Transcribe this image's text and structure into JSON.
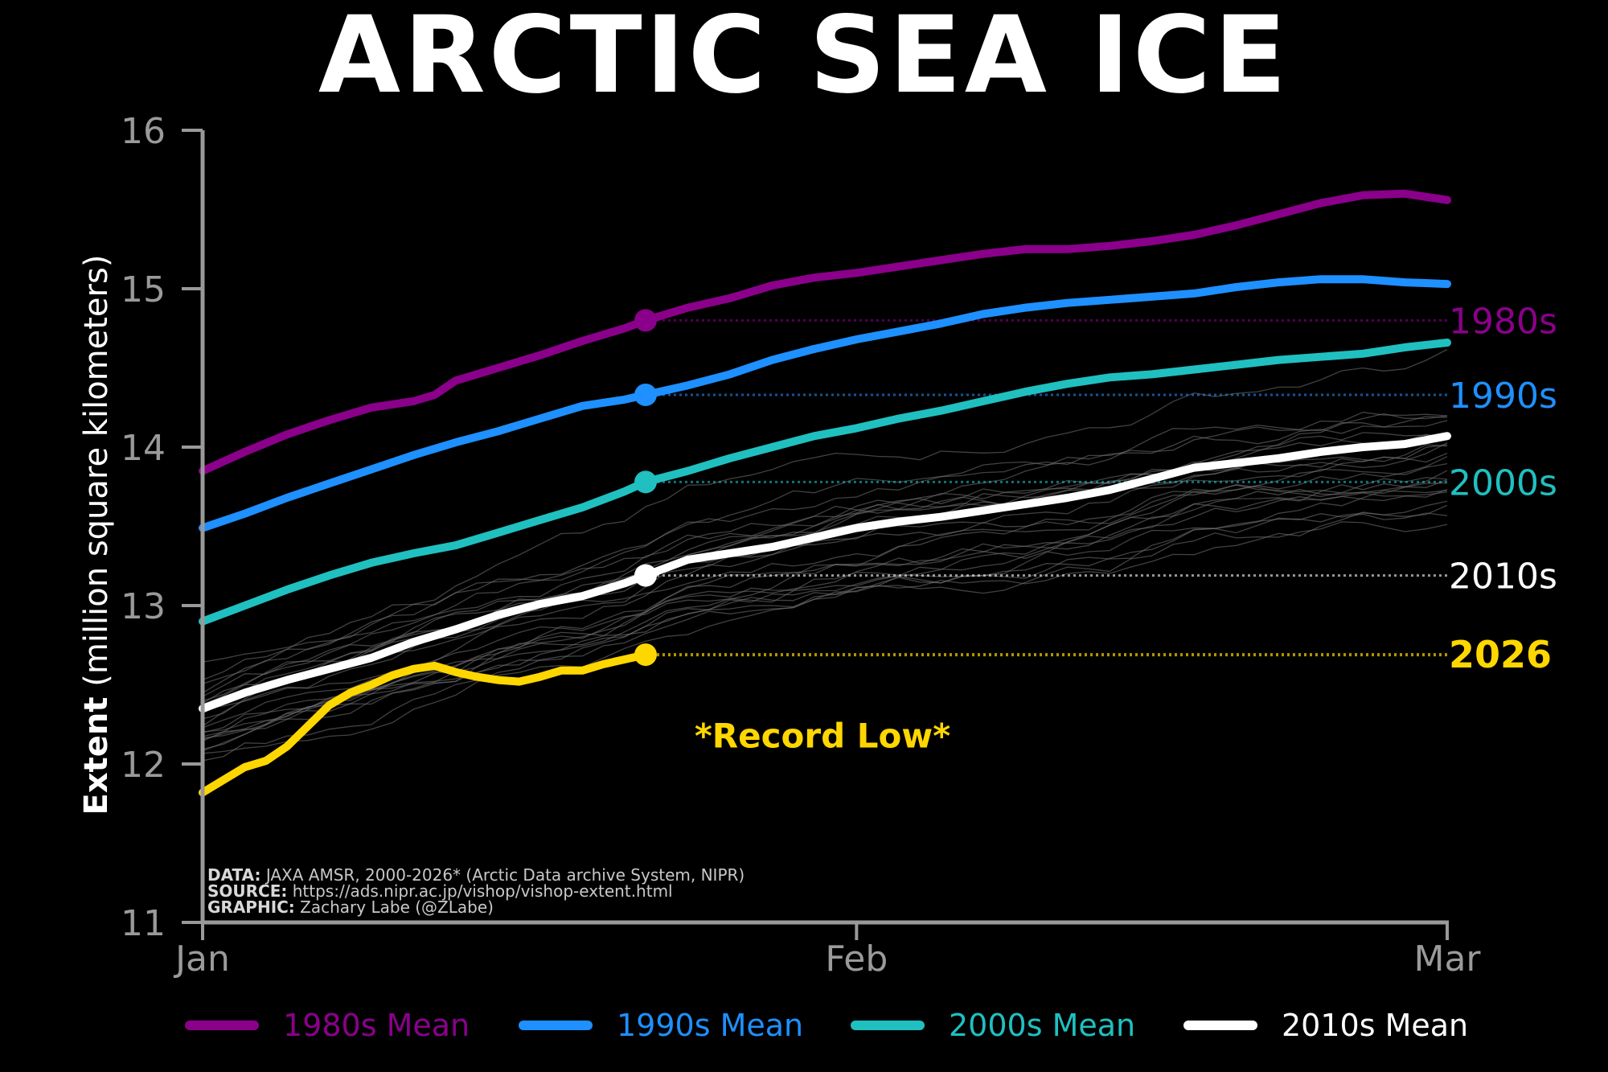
{
  "chart_data": {
    "type": "line",
    "title": "ARCTIC SEA ICE",
    "ylabel_bold": "Extent",
    "ylabel_rest": "(million square kilometers)",
    "ylim": [
      11,
      16
    ],
    "yticks": [
      "11",
      "12",
      "13",
      "14",
      "15",
      "16"
    ],
    "xlim": [
      0,
      59
    ],
    "xticks": [
      {
        "label": "Jan",
        "x": 0
      },
      {
        "label": "Feb",
        "x": 31
      },
      {
        "label": "Mar",
        "x": 59
      }
    ],
    "grid": false,
    "legend_position": "bottom",
    "series": [
      {
        "name": "1980s Mean",
        "end_label": "1980s",
        "color": "#8b008b",
        "marker_x": 21,
        "marker_y": 14.8,
        "x": [
          0,
          2,
          4,
          6,
          8,
          10,
          11,
          12,
          14,
          16,
          18,
          20,
          21,
          23,
          25,
          27,
          29,
          31,
          33,
          35,
          37,
          39,
          41,
          43,
          45,
          47,
          49,
          51,
          53,
          55,
          57,
          59
        ],
        "values": [
          13.85,
          13.97,
          14.08,
          14.17,
          14.25,
          14.29,
          14.33,
          14.42,
          14.5,
          14.58,
          14.67,
          14.75,
          14.8,
          14.88,
          14.94,
          15.02,
          15.07,
          15.1,
          15.14,
          15.18,
          15.22,
          15.25,
          15.25,
          15.27,
          15.3,
          15.34,
          15.4,
          15.47,
          15.54,
          15.59,
          15.6,
          15.56
        ]
      },
      {
        "name": "1990s Mean",
        "end_label": "1990s",
        "color": "#1e90ff",
        "marker_x": 21,
        "marker_y": 14.33,
        "x": [
          0,
          2,
          4,
          6,
          8,
          10,
          12,
          14,
          16,
          18,
          20,
          21,
          23,
          25,
          27,
          29,
          31,
          33,
          35,
          37,
          39,
          41,
          43,
          45,
          47,
          49,
          51,
          53,
          55,
          57,
          59
        ],
        "values": [
          13.49,
          13.58,
          13.68,
          13.77,
          13.86,
          13.95,
          14.03,
          14.1,
          14.18,
          14.26,
          14.3,
          14.33,
          14.39,
          14.46,
          14.55,
          14.62,
          14.68,
          14.73,
          14.78,
          14.84,
          14.88,
          14.91,
          14.93,
          14.95,
          14.97,
          15.01,
          15.04,
          15.06,
          15.06,
          15.04,
          15.03
        ]
      },
      {
        "name": "2000s Mean",
        "end_label": "2000s",
        "color": "#20c0c0",
        "marker_x": 21,
        "marker_y": 13.78,
        "x": [
          0,
          2,
          4,
          6,
          8,
          10,
          12,
          14,
          16,
          18,
          20,
          21,
          23,
          25,
          27,
          29,
          31,
          33,
          35,
          37,
          39,
          41,
          43,
          45,
          47,
          49,
          51,
          53,
          55,
          57,
          59
        ],
        "values": [
          12.9,
          13.0,
          13.1,
          13.19,
          13.27,
          13.33,
          13.38,
          13.46,
          13.54,
          13.62,
          13.72,
          13.78,
          13.85,
          13.93,
          14.0,
          14.07,
          14.12,
          14.18,
          14.23,
          14.29,
          14.35,
          14.4,
          14.44,
          14.46,
          14.49,
          14.52,
          14.55,
          14.57,
          14.59,
          14.63,
          14.66
        ]
      },
      {
        "name": "2010s Mean",
        "end_label": "2010s",
        "color": "#ffffff",
        "marker_x": 21,
        "marker_y": 13.19,
        "x": [
          0,
          2,
          4,
          6,
          8,
          10,
          12,
          14,
          16,
          18,
          20,
          21,
          23,
          25,
          27,
          29,
          31,
          33,
          35,
          37,
          39,
          41,
          43,
          45,
          47,
          49,
          51,
          53,
          55,
          57,
          59
        ],
        "values": [
          12.35,
          12.45,
          12.53,
          12.6,
          12.67,
          12.77,
          12.85,
          12.94,
          13.01,
          13.06,
          13.14,
          13.19,
          13.29,
          13.33,
          13.37,
          13.43,
          13.49,
          13.53,
          13.56,
          13.6,
          13.64,
          13.68,
          13.73,
          13.8,
          13.87,
          13.9,
          13.93,
          13.97,
          14.0,
          14.02,
          14.07
        ]
      },
      {
        "name": "2026",
        "end_label": "2026",
        "color": "#ffd700",
        "marker_x": 21,
        "marker_y": 12.69,
        "x": [
          0,
          2,
          3,
          4,
          6,
          7,
          8,
          9,
          10,
          11,
          12,
          13,
          14,
          15,
          16,
          17,
          18,
          19,
          20,
          21
        ],
        "values": [
          11.82,
          11.98,
          12.02,
          12.11,
          12.37,
          12.45,
          12.5,
          12.56,
          12.6,
          12.62,
          12.58,
          12.55,
          12.53,
          12.52,
          12.55,
          12.59,
          12.59,
          12.63,
          12.66,
          12.69
        ]
      }
    ],
    "annotation": "*Record Low*",
    "annotation_color": "#ffd700",
    "background_years_color": "#777777"
  },
  "credits": {
    "data_label": "DATA:",
    "data_text": "JAXA AMSR, 2000-2026* (Arctic Data archive System, NIPR)",
    "source_label": "SOURCE:",
    "source_text": "https://ads.nipr.ac.jp/vishop/vishop-extent.html",
    "graphic_label": "GRAPHIC:",
    "graphic_text": "Zachary Labe (@ZLabe)"
  }
}
